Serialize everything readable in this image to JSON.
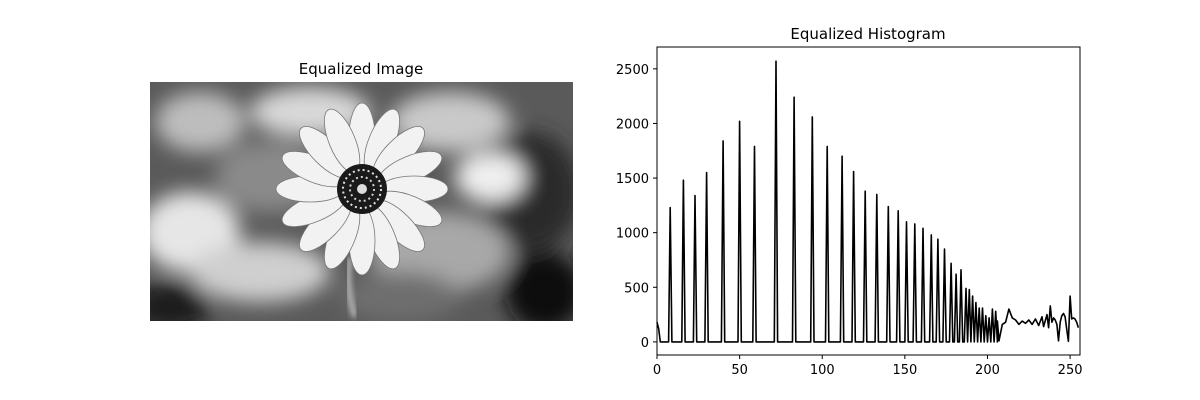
{
  "image_panel": {
    "title": "Equalized Image"
  },
  "chart_data": {
    "type": "line",
    "title": "Equalized Histogram",
    "xlabel": "",
    "ylabel": "",
    "xlim": [
      0,
      256
    ],
    "ylim": [
      -120,
      2700
    ],
    "xticks": [
      0,
      50,
      100,
      150,
      200,
      250
    ],
    "yticks": [
      0,
      500,
      1000,
      1500,
      2000,
      2500
    ],
    "grid": false,
    "line_color": "#000000",
    "peaks": [
      [
        0,
        180
      ],
      [
        8,
        1230
      ],
      [
        16,
        1480
      ],
      [
        23,
        1340
      ],
      [
        30,
        1550
      ],
      [
        40,
        1840
      ],
      [
        50,
        2020
      ],
      [
        59,
        1790
      ],
      [
        72,
        2570
      ],
      [
        83,
        2240
      ],
      [
        94,
        2060
      ],
      [
        103,
        1790
      ],
      [
        112,
        1700
      ],
      [
        119,
        1560
      ],
      [
        126,
        1380
      ],
      [
        133,
        1350
      ],
      [
        140,
        1240
      ],
      [
        146,
        1200
      ],
      [
        151,
        1100
      ],
      [
        156,
        1080
      ],
      [
        161,
        1040
      ],
      [
        166,
        980
      ],
      [
        170,
        940
      ],
      [
        174,
        850
      ],
      [
        178,
        720
      ],
      [
        181,
        620
      ],
      [
        184,
        660
      ],
      [
        187,
        490
      ],
      [
        189,
        480
      ],
      [
        191,
        420
      ],
      [
        193,
        360
      ],
      [
        195,
        310
      ],
      [
        197,
        310
      ],
      [
        199,
        240
      ],
      [
        201,
        220
      ],
      [
        203,
        300
      ],
      [
        205,
        280
      ]
    ],
    "tail": [
      [
        206,
        190
      ],
      [
        207,
        10
      ],
      [
        209,
        160
      ],
      [
        211,
        180
      ],
      [
        213,
        300
      ],
      [
        215,
        220
      ],
      [
        217,
        200
      ],
      [
        219,
        160
      ],
      [
        221,
        190
      ],
      [
        223,
        170
      ],
      [
        225,
        200
      ],
      [
        227,
        160
      ],
      [
        229,
        210
      ],
      [
        231,
        150
      ],
      [
        233,
        230
      ],
      [
        234,
        140
      ],
      [
        236,
        250
      ],
      [
        237,
        130
      ],
      [
        238,
        330
      ],
      [
        239,
        180
      ],
      [
        240,
        220
      ],
      [
        241,
        200
      ],
      [
        242,
        160
      ],
      [
        243,
        10
      ],
      [
        244,
        180
      ],
      [
        245,
        240
      ],
      [
        246,
        260
      ],
      [
        247,
        230
      ],
      [
        248,
        110
      ],
      [
        249,
        5
      ],
      [
        250,
        420
      ],
      [
        251,
        210
      ],
      [
        252,
        220
      ],
      [
        253,
        210
      ],
      [
        254,
        180
      ],
      [
        255,
        130
      ]
    ]
  }
}
